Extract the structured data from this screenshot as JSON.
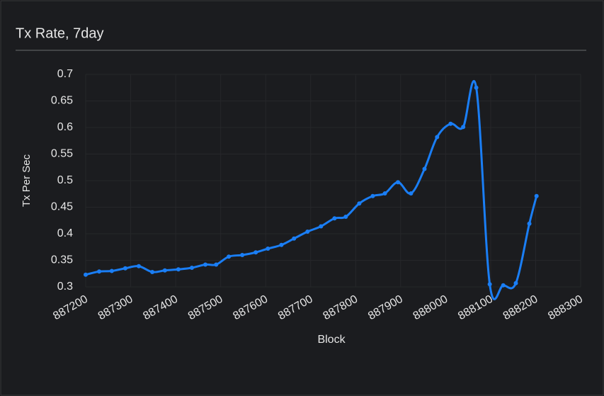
{
  "chart_data": {
    "type": "line",
    "title": "Tx Rate, 7day",
    "xlabel": "Block",
    "ylabel": "Tx Per Sec",
    "series": [
      {
        "name": "Tx Rate",
        "color": "#1a7ef5",
        "x": [
          887200,
          887230,
          887258,
          887288,
          887318,
          887348,
          887376,
          887406,
          887436,
          887466,
          887490,
          887518,
          887548,
          887578,
          887605,
          887635,
          887663,
          887693,
          887723,
          887753,
          887778,
          887808,
          887838,
          887865,
          887894,
          887923,
          887953,
          887981,
          888011,
          888039,
          888068,
          888098,
          888128,
          888156,
          888186,
          888202
        ],
        "values": [
          0.323,
          0.329,
          0.33,
          0.335,
          0.339,
          0.328,
          0.331,
          0.333,
          0.336,
          0.342,
          0.342,
          0.357,
          0.36,
          0.365,
          0.372,
          0.379,
          0.391,
          0.404,
          0.414,
          0.429,
          0.432,
          0.457,
          0.471,
          0.476,
          0.497,
          0.476,
          0.522,
          0.582,
          0.607,
          0.601,
          0.675,
          0.305,
          0.303,
          0.307,
          0.419,
          0.471
        ]
      }
    ],
    "xlim": [
      887200,
      888300
    ],
    "xticks": [
      887200,
      887300,
      887400,
      887500,
      887600,
      887700,
      887800,
      887900,
      888000,
      888100,
      888200,
      888300
    ],
    "ylim": [
      0.3,
      0.7
    ],
    "yticks": [
      0.3,
      0.35,
      0.4,
      0.45,
      0.5,
      0.55,
      0.6,
      0.65,
      0.7
    ],
    "grid": true
  }
}
